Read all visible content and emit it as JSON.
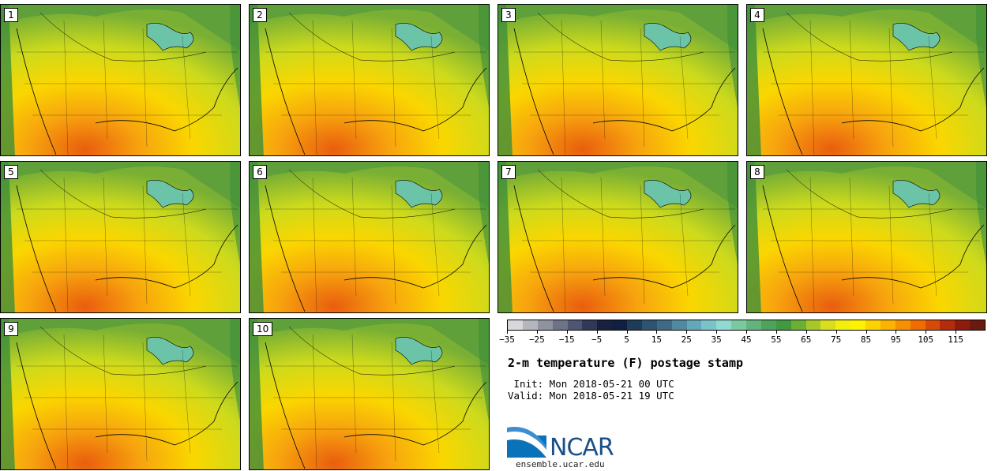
{
  "panels": [
    {
      "label": "1"
    },
    {
      "label": "2"
    },
    {
      "label": "3"
    },
    {
      "label": "4"
    },
    {
      "label": "5"
    },
    {
      "label": "6"
    },
    {
      "label": "7"
    },
    {
      "label": "8"
    },
    {
      "label": "9"
    },
    {
      "label": "10"
    }
  ],
  "colorbar": {
    "colors": [
      "#d8d8dc",
      "#b4b6bc",
      "#8f93a0",
      "#6e7488",
      "#4e5672",
      "#2f3a58",
      "#18223f",
      "#102040",
      "#1e3b57",
      "#2e5470",
      "#3e6b84",
      "#4f8a9e",
      "#63a8b8",
      "#78c4c8",
      "#8fd9d0",
      "#7cc8a0",
      "#63b47c",
      "#4ea25c",
      "#3f9a40",
      "#6bb034",
      "#a8c828",
      "#d8de1e",
      "#f2ee10",
      "#fff200",
      "#fdd200",
      "#fbb200",
      "#f59000",
      "#ee6c00",
      "#d84a08",
      "#b42c0c",
      "#8e1c0c",
      "#6a1a0e"
    ],
    "ticks": [
      "−35",
      "−25",
      "−15",
      "−5",
      "5",
      "15",
      "25",
      "35",
      "45",
      "55",
      "65",
      "75",
      "85",
      "95",
      "105",
      "115"
    ]
  },
  "title": "2-m temperature (F) postage stamp",
  "init": " Init: Mon 2018-05-21 00 UTC",
  "valid": "Valid: Mon 2018-05-21 19 UTC",
  "logo": {
    "text": "NCAR",
    "url": "ensemble.ucar.edu"
  }
}
